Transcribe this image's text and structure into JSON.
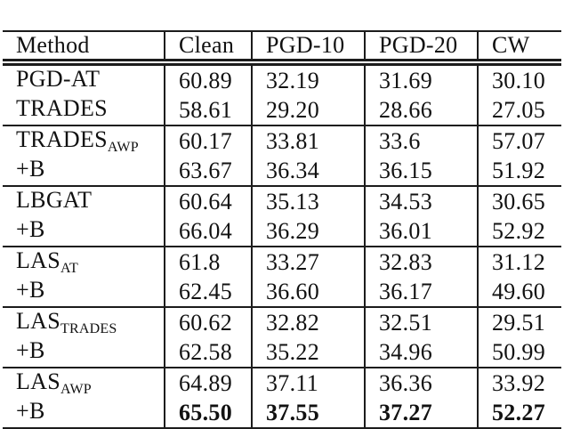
{
  "table": {
    "columns": [
      "Method",
      "Clean",
      "PGD-10",
      "PGD-20",
      "CW"
    ],
    "rows": [
      {
        "method": "PGD-AT",
        "sub": "",
        "values": [
          "60.89",
          "32.19",
          "31.69",
          "30.10"
        ]
      },
      {
        "method": "TRADES",
        "sub": "",
        "values": [
          "58.61",
          "29.20",
          "28.66",
          "27.05"
        ]
      },
      {
        "method": "TRADES",
        "sub": "AWP",
        "values": [
          "60.17",
          "33.81",
          "33.6",
          "57.07"
        ]
      },
      {
        "method": "+B",
        "sub": "",
        "values": [
          "63.67",
          "36.34",
          "36.15",
          "51.92"
        ]
      },
      {
        "method": "LBGAT",
        "sub": "",
        "values": [
          "60.64",
          "35.13",
          "34.53",
          "30.65"
        ]
      },
      {
        "method": "+B",
        "sub": "",
        "values": [
          "66.04",
          "36.29",
          "36.01",
          "52.92"
        ]
      },
      {
        "method": "LAS",
        "sub": "AT",
        "values": [
          "61.8",
          "33.27",
          "32.83",
          "31.12"
        ]
      },
      {
        "method": "+B",
        "sub": "",
        "values": [
          "62.45",
          "36.60",
          "36.17",
          "49.60"
        ]
      },
      {
        "method": "LAS",
        "sub": "TRADES",
        "values": [
          "60.62",
          "32.82",
          "32.51",
          "29.51"
        ]
      },
      {
        "method": "+B",
        "sub": "",
        "values": [
          "62.58",
          "35.22",
          "34.96",
          "50.99"
        ]
      },
      {
        "method": "LAS",
        "sub": "AWP",
        "values": [
          "64.89",
          "37.11",
          "36.36",
          "33.92"
        ]
      },
      {
        "method": "+B",
        "sub": "",
        "values": [
          "65.50",
          "37.55",
          "37.27",
          "52.27"
        ]
      }
    ]
  },
  "chart_data": {
    "type": "table",
    "title": "",
    "columns": [
      "Method",
      "Clean",
      "PGD-10",
      "PGD-20",
      "CW"
    ],
    "rows": [
      {
        "method": "PGD-AT",
        "clean": 60.89,
        "pgd10": 32.19,
        "pgd20": 31.69,
        "cw": 30.1
      },
      {
        "method": "TRADES",
        "clean": 58.61,
        "pgd10": 29.2,
        "pgd20": 28.66,
        "cw": 27.05
      },
      {
        "method": "TRADES_AWP",
        "clean": 60.17,
        "pgd10": 33.81,
        "pgd20": 33.6,
        "cw": 57.07
      },
      {
        "method": "+B",
        "clean": 63.67,
        "pgd10": 36.34,
        "pgd20": 36.15,
        "cw": 51.92
      },
      {
        "method": "LBGAT",
        "clean": 60.64,
        "pgd10": 35.13,
        "pgd20": 34.53,
        "cw": 30.65
      },
      {
        "method": "+B",
        "clean": 66.04,
        "pgd10": 36.29,
        "pgd20": 36.01,
        "cw": 52.92
      },
      {
        "method": "LAS_AT",
        "clean": 61.8,
        "pgd10": 33.27,
        "pgd20": 32.83,
        "cw": 31.12
      },
      {
        "method": "+B",
        "clean": 62.45,
        "pgd10": 36.6,
        "pgd20": 36.17,
        "cw": 49.6
      },
      {
        "method": "LAS_TRADES",
        "clean": 60.62,
        "pgd10": 32.82,
        "pgd20": 32.51,
        "cw": 29.51
      },
      {
        "method": "+B",
        "clean": 62.58,
        "pgd10": 35.22,
        "pgd20": 34.96,
        "cw": 50.99
      },
      {
        "method": "LAS_AWP",
        "clean": 64.89,
        "pgd10": 37.11,
        "pgd20": 36.36,
        "cw": 33.92
      },
      {
        "method": "+B",
        "clean": 65.5,
        "pgd10": 37.55,
        "pgd20": 37.27,
        "cw": 52.27,
        "bold": true
      }
    ]
  }
}
